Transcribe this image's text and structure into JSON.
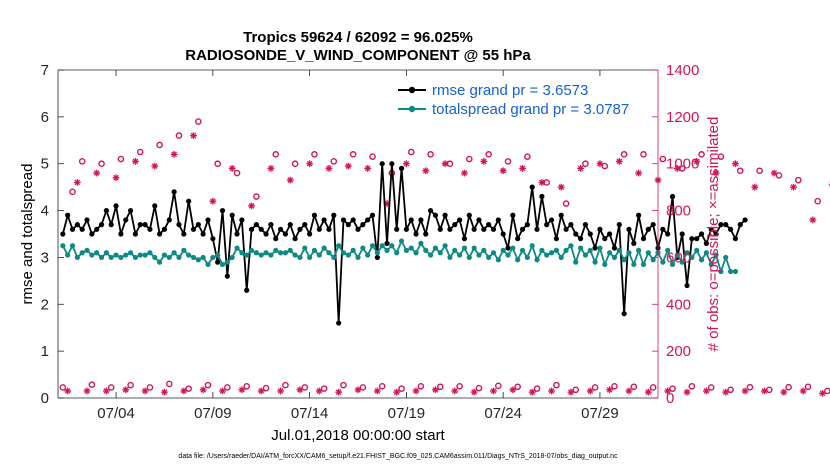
{
  "chart_data": {
    "type": "line",
    "title": "Tropics 59624 / 62092 = 96.025%",
    "subtitle": "RADIOSONDE_V_WIND_COMPONENT @ 55 hPa",
    "xlabel": "Jul.01,2018 00:00:00 start",
    "ylabel": "rmse and totalspread",
    "y2label": "# of obs: o=possible; ×=assimilated",
    "footnote": "data file: /Users/raeder/DAI/ATM_forcXX/CAM6_setup/f.e21.FHIST_BGC.f09_025.CAM6assim.011/Diags_NTrS_2018-07/obs_diag_output.nc",
    "xlim": [
      1,
      32
    ],
    "ylim": [
      0,
      7
    ],
    "y2lim": [
      0,
      1400
    ],
    "xticks": [
      4,
      9,
      14,
      19,
      24,
      29
    ],
    "xticklabels": [
      "07/04",
      "07/09",
      "07/14",
      "07/19",
      "07/24",
      "07/29"
    ],
    "yticks": [
      0,
      1,
      2,
      3,
      4,
      5,
      6,
      7
    ],
    "yticklabels": [
      "0",
      "1",
      "2",
      "3",
      "4",
      "5",
      "6",
      "7"
    ],
    "y2ticks": [
      0,
      200,
      400,
      600,
      800,
      1000,
      1200,
      1400
    ],
    "y2ticklabels": [
      "0",
      "200",
      "400",
      "600",
      "800",
      "1000",
      "1200",
      "1400"
    ],
    "legend_position": "top-right",
    "series": [
      {
        "name": "rmse grand pr = 3.6573",
        "color": "#000000",
        "marker": "filled-circle",
        "axis": "left",
        "start": 1.25,
        "step": 0.25,
        "values": [
          3.5,
          3.9,
          3.6,
          3.7,
          3.6,
          3.8,
          3.5,
          3.6,
          3.7,
          4.0,
          3.7,
          4.1,
          3.5,
          3.8,
          4.0,
          3.5,
          3.7,
          3.7,
          3.6,
          4.1,
          3.5,
          3.6,
          3.8,
          4.4,
          3.7,
          3.5,
          4.2,
          3.6,
          3.7,
          3.5,
          3.8,
          3.4,
          2.9,
          4.0,
          2.6,
          3.9,
          3.5,
          3.8,
          2.3,
          3.6,
          3.7,
          3.6,
          3.5,
          3.7,
          3.4,
          3.6,
          3.5,
          3.7,
          3.4,
          3.6,
          3.7,
          3.5,
          3.9,
          3.6,
          3.8,
          3.6,
          3.9,
          1.6,
          3.8,
          3.7,
          3.8,
          3.6,
          3.7,
          3.8,
          3.9,
          3.0,
          5.0,
          3.3,
          5.0,
          3.6,
          4.9,
          3.6,
          3.8,
          3.5,
          3.8,
          3.5,
          4.0,
          3.9,
          3.6,
          3.9,
          3.6,
          3.7,
          3.8,
          3.4,
          3.9,
          3.6,
          3.8,
          3.6,
          3.7,
          3.6,
          3.8,
          3.5,
          3.2,
          3.9,
          3.4,
          3.6,
          3.7,
          4.5,
          3.6,
          4.3,
          3.7,
          3.8,
          3.4,
          3.9,
          3.6,
          3.7,
          3.5,
          3.4,
          3.7,
          3.5,
          3.2,
          3.6,
          3.4,
          3.5,
          3.2,
          3.7,
          1.8,
          3.6,
          3.3,
          3.9,
          3.4,
          3.6,
          3.7,
          3.2,
          3.6,
          3.5,
          4.3,
          3.0,
          3.5,
          2.4,
          3.4,
          3.4,
          3.5,
          3.3,
          3.6,
          3.5,
          3.7,
          3.7,
          3.6,
          3.4,
          3.7,
          3.8
        ]
      },
      {
        "name": "totalspread grand pr = 3.0787",
        "color": "#0e8a86",
        "marker": "filled-circle",
        "axis": "left",
        "start": 1.25,
        "step": 0.25,
        "values": [
          3.25,
          3.05,
          3.25,
          3.0,
          3.1,
          3.15,
          3.05,
          3.1,
          3.0,
          3.1,
          3.0,
          3.05,
          3.0,
          3.05,
          3.1,
          3.0,
          3.05,
          3.05,
          3.1,
          3.0,
          2.9,
          3.05,
          3.0,
          3.1,
          3.0,
          3.15,
          3.05,
          3.0,
          2.95,
          3.0,
          2.85,
          3.0,
          3.05,
          2.85,
          2.9,
          3.0,
          3.2,
          3.1,
          3.05,
          3.15,
          3.1,
          3.05,
          3.1,
          3.05,
          3.15,
          3.1,
          3.1,
          3.15,
          3.05,
          3.0,
          3.2,
          3.0,
          3.15,
          3.05,
          3.2,
          3.1,
          3.0,
          3.25,
          3.1,
          3.05,
          3.15,
          3.0,
          3.2,
          3.05,
          3.25,
          3.1,
          3.25,
          3.15,
          3.25,
          3.1,
          3.35,
          3.15,
          3.2,
          3.1,
          3.3,
          3.15,
          3.05,
          3.2,
          3.1,
          3.25,
          3.0,
          3.15,
          3.05,
          3.2,
          3.0,
          3.2,
          3.05,
          3.15,
          3.0,
          3.1,
          2.95,
          3.15,
          3.05,
          3.2,
          2.95,
          3.15,
          3.0,
          3.25,
          2.95,
          3.15,
          3.05,
          3.1,
          3.15,
          3.0,
          3.15,
          3.25,
          2.9,
          3.2,
          3.05,
          3.15,
          2.9,
          3.2,
          2.85,
          3.1,
          3.0,
          3.15,
          2.95,
          3.1,
          2.85,
          3.15,
          2.85,
          3.1,
          2.95,
          3.1,
          2.9,
          3.15,
          2.85,
          3.05,
          2.9,
          3.1,
          3.0,
          3.15,
          2.95,
          3.1,
          2.85,
          3.05,
          2.7,
          3.0,
          2.7,
          2.7
        ]
      },
      {
        "name": "possible",
        "color": "#d4145a",
        "marker": "open-circle",
        "axis": "right",
        "start": 1.25,
        "step": 0.5,
        "values": [
          45,
          880,
          1010,
          57,
          1000,
          45,
          1020,
          55,
          1050,
          45,
          1080,
          60,
          1120,
          40,
          1180,
          55,
          1000,
          45,
          960,
          50,
          860,
          42,
          1040,
          55,
          1000,
          45,
          1040,
          40,
          1010,
          55,
          1040,
          45,
          1030,
          50,
          960,
          40,
          1050,
          50,
          1040,
          48,
          1000,
          50,
          1020,
          42,
          1040,
          52,
          1010,
          48,
          1030,
          40,
          920,
          55,
          830,
          35,
          1000,
          45,
          990,
          50,
          1040,
          48,
          1040,
          45,
          1020,
          40,
          980,
          50,
          1040,
          45,
          1030,
          35,
          970,
          46,
          970,
          35,
          950,
          46,
          930,
          48,
          840,
          30
        ]
      },
      {
        "name": "assimilated",
        "color": "#d4145a",
        "marker": "asterisk",
        "axis": "right",
        "start": 1.5,
        "step": 0.5,
        "values": [
          30,
          920,
          30,
          960,
          30,
          940,
          35,
          1010,
          30,
          990,
          25,
          1040,
          30,
          1120,
          35,
          840,
          30,
          980,
          35,
          820,
          30,
          980,
          30,
          930,
          35,
          1000,
          30,
          980,
          25,
          990,
          35,
          980,
          30,
          830,
          25,
          1000,
          30,
          970,
          35,
          1000,
          30,
          960,
          25,
          1010,
          30,
          970,
          35,
          980,
          25,
          920,
          30,
          900,
          25,
          980,
          30,
          1000,
          35,
          1010,
          30,
          960,
          25,
          930,
          30,
          980,
          25,
          1010,
          30,
          960,
          25,
          1000,
          30,
          900,
          30,
          960,
          25,
          900,
          30,
          760,
          20,
          910,
          10
        ]
      }
    ]
  }
}
